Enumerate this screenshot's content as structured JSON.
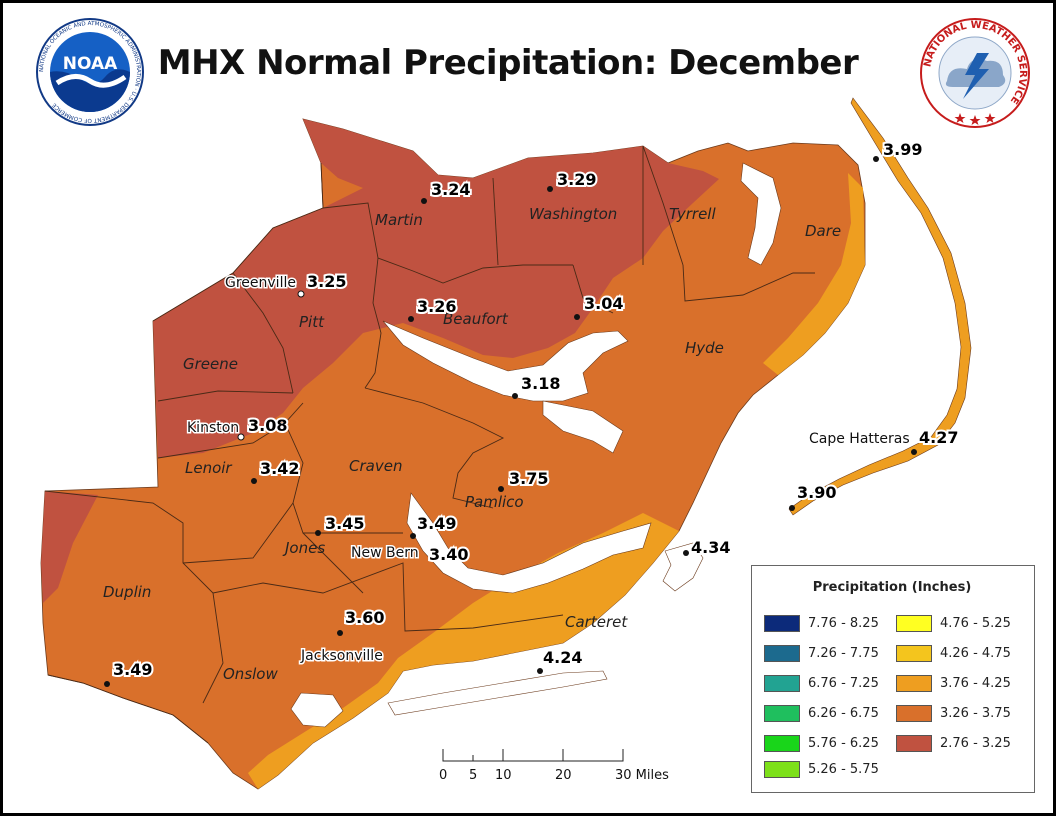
{
  "title": "MHX Normal Precipitation: December",
  "logos": {
    "noaa": {
      "center_text": "NOAA",
      "ring_text": "NATIONAL OCEANIC AND ATMOSPHERIC ADMINISTRATION · U.S. DEPARTMENT OF COMMERCE",
      "icon": "noaa-logo-icon"
    },
    "nws": {
      "ring_text": "NATIONAL WEATHER SERVICE",
      "icon": "nws-logo-icon"
    }
  },
  "counties": [
    {
      "name": "Martin",
      "class": "2.76 - 3.25"
    },
    {
      "name": "Washington",
      "class": "2.76 - 3.25"
    },
    {
      "name": "Tyrrell",
      "class": "3.26 - 3.75"
    },
    {
      "name": "Dare",
      "class": "3.26 - 3.75"
    },
    {
      "name": "Pitt",
      "class": "2.76 - 3.25"
    },
    {
      "name": "Beaufort",
      "class": "2.76 - 3.25"
    },
    {
      "name": "Hyde",
      "class": "3.26 - 3.75"
    },
    {
      "name": "Greene",
      "class": "2.76 - 3.25"
    },
    {
      "name": "Lenoir",
      "class": "3.26 - 3.75"
    },
    {
      "name": "Craven",
      "class": "3.26 - 3.75"
    },
    {
      "name": "Pamlico",
      "class": "3.26 - 3.75"
    },
    {
      "name": "Jones",
      "class": "3.26 - 3.75"
    },
    {
      "name": "Duplin",
      "class": "3.26 - 3.75"
    },
    {
      "name": "Onslow",
      "class": "3.26 - 3.75"
    },
    {
      "name": "Carteret",
      "class": "3.76 - 4.25"
    }
  ],
  "stations": [
    {
      "city": "",
      "value": "3.24"
    },
    {
      "city": "",
      "value": "3.29"
    },
    {
      "city": "",
      "value": "3.99"
    },
    {
      "city": "Greenville",
      "value": "3.25"
    },
    {
      "city": "",
      "value": "3.26"
    },
    {
      "city": "",
      "value": "3.04"
    },
    {
      "city": "",
      "value": "3.18"
    },
    {
      "city": "Kinston",
      "value": "3.08"
    },
    {
      "city": "",
      "value": "3.42"
    },
    {
      "city": "",
      "value": "3.75"
    },
    {
      "city": "",
      "value": "3.45"
    },
    {
      "city": "",
      "value": "3.49"
    },
    {
      "city": "New Bern",
      "value": "3.40"
    },
    {
      "city": "",
      "value": "3.60"
    },
    {
      "city": "Jacksonville",
      "value": "3.60"
    },
    {
      "city": "",
      "value": "3.49"
    },
    {
      "city": "Cape Hatteras",
      "value": "4.27"
    },
    {
      "city": "",
      "value": "3.90"
    },
    {
      "city": "",
      "value": "4.34"
    },
    {
      "city": "",
      "value": "4.24"
    }
  ],
  "scale_bar": {
    "ticks": [
      "0",
      "5",
      "10",
      "20",
      "30 Miles"
    ]
  },
  "legend": {
    "title": "Precipitation (Inches)",
    "items": [
      {
        "label": "7.76 - 8.25",
        "color": "#0c2a7a"
      },
      {
        "label": "7.26 - 7.75",
        "color": "#1c6a8e"
      },
      {
        "label": "6.76 - 7.25",
        "color": "#22a392"
      },
      {
        "label": "6.26 - 6.75",
        "color": "#1fbf5e"
      },
      {
        "label": "5.76 - 6.25",
        "color": "#19d51a"
      },
      {
        "label": "5.26 - 5.75",
        "color": "#7de01a"
      },
      {
        "label": "4.76 - 5.25",
        "color": "#ffff22"
      },
      {
        "label": "4.26 - 4.75",
        "color": "#f4c51d"
      },
      {
        "label": "3.76 - 4.25",
        "color": "#ee9e20"
      },
      {
        "label": "3.26 - 3.75",
        "color": "#d9702b"
      },
      {
        "label": "2.76 - 3.25",
        "color": "#c05240"
      }
    ]
  }
}
